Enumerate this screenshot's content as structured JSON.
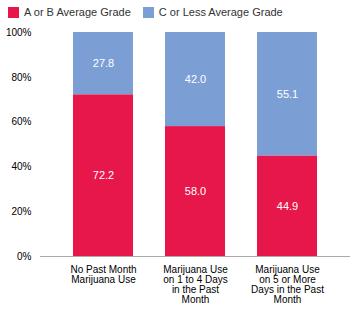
{
  "chart_data": {
    "type": "bar",
    "stacked": true,
    "categories": [
      "No Past Month\nMarijuana Use",
      "Marijuana Use\non 1 to 4 Days\nin the Past\nMonth",
      "Marijuana Use\non 5 or More\nDays in the Past\nMonth"
    ],
    "series": [
      {
        "name": "A or B Average Grade",
        "color": "#E8174B",
        "values": [
          72.2,
          58.0,
          44.9
        ],
        "value_labels": [
          "72.2",
          "58.0",
          "44.9"
        ]
      },
      {
        "name": "C or Less Average Grade",
        "color": "#7B9FD4",
        "values": [
          27.8,
          42.0,
          55.1
        ],
        "value_labels": [
          "27.8",
          "42.0",
          "55.1"
        ]
      }
    ],
    "ylim": [
      0,
      100
    ],
    "yticks": [
      {
        "value": 0,
        "label": "0%"
      },
      {
        "value": 20,
        "label": "20%"
      },
      {
        "value": 40,
        "label": "40%"
      },
      {
        "value": 60,
        "label": "60%"
      },
      {
        "value": 80,
        "label": "80%"
      },
      {
        "value": 100,
        "label": "100%"
      }
    ],
    "data_labels": true,
    "grid": false,
    "legend": "top left"
  }
}
